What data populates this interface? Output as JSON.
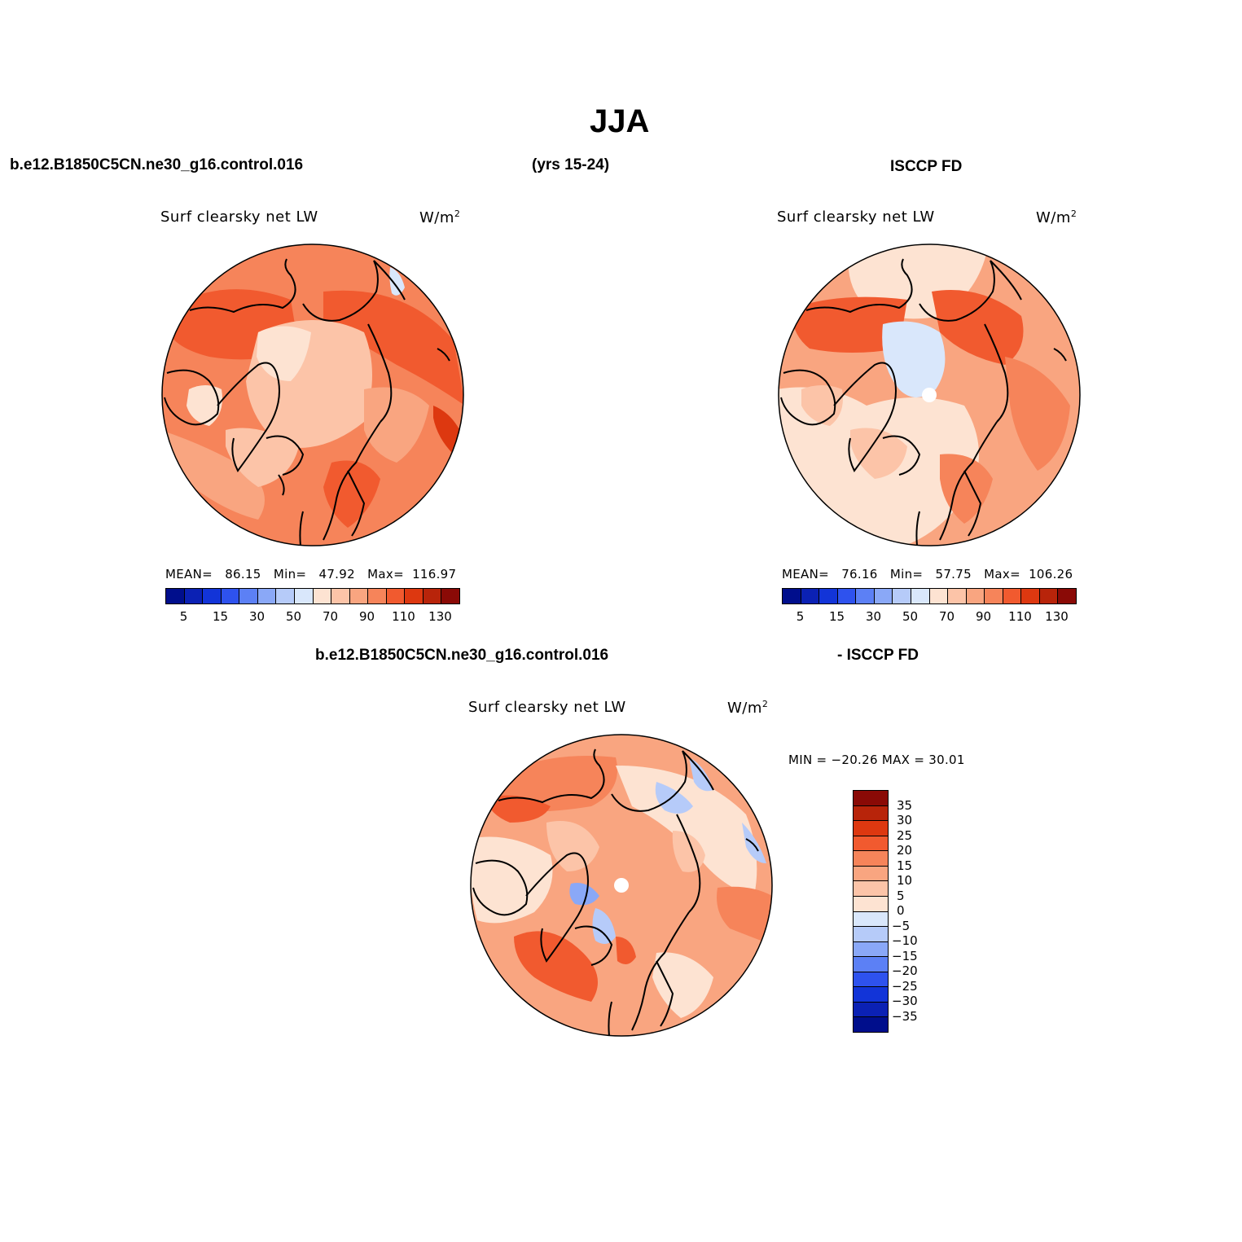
{
  "title": "JJA",
  "header": {
    "case_name": "b.e12.B1850C5CN.ne30_g16.control.016",
    "years": "(yrs 15-24)",
    "obs_name": "ISCCP FD",
    "diff_case": "b.e12.B1850C5CN.ne30_g16.control.016",
    "diff_obs": "- ISCCP FD"
  },
  "panels": {
    "model": {
      "variable": "Surf clearsky net LW",
      "units": "W/m",
      "units_exp": "2",
      "mean_label": "MEAN=",
      "mean": "86.15",
      "min_label": "Min=",
      "min": "47.92",
      "max_label": "Max=",
      "max": "116.97"
    },
    "obs": {
      "variable": "Surf clearsky net LW",
      "units": "W/m",
      "units_exp": "2",
      "mean_label": "MEAN=",
      "mean": "76.16",
      "min_label": "Min=",
      "min": "57.75",
      "max_label": "Max=",
      "max": "106.26"
    },
    "diff": {
      "variable": "Surf clearsky net LW",
      "units": "W/m",
      "units_exp": "2",
      "minmax": "MIN = −20.26 MAX =   30.01"
    }
  },
  "colorbar_main": {
    "colors": [
      "#000e8c",
      "#0b21b4",
      "#1234d8",
      "#2e52ee",
      "#5c80f5",
      "#8aa8f7",
      "#b6cbf9",
      "#d9e7fb",
      "#fde3d2",
      "#fcc4a8",
      "#f9a580",
      "#f6845a",
      "#f15a2f",
      "#dd3810",
      "#b8240a",
      "#8a0a06"
    ],
    "ticks": [
      "5",
      "15",
      "30",
      "50",
      "70",
      "90",
      "110",
      "130"
    ]
  },
  "colorbar_diff": {
    "colors": [
      "#8a0a06",
      "#b8240a",
      "#dd3810",
      "#f15a2f",
      "#f6845a",
      "#f9a580",
      "#fcc4a8",
      "#fde3d2",
      "#d9e7fb",
      "#b6cbf9",
      "#8aa8f7",
      "#5c80f5",
      "#2e52ee",
      "#1234d8",
      "#0b21b4",
      "#000e8c"
    ],
    "ticks": [
      "35",
      "30",
      "25",
      "20",
      "15",
      "10",
      "5",
      "0",
      "−5",
      "−10",
      "−15",
      "−20",
      "−25",
      "−30",
      "−35"
    ]
  },
  "map_colors": {
    "c50": "#d9e7fb",
    "c60": "#fde3d2",
    "c70": "#fcc4a8",
    "c80": "#f9a580",
    "c90": "#f6845a",
    "c100": "#f15a2f",
    "c110": "#dd3810",
    "d_neg": "#b6cbf9",
    "d_neg2": "#8aa8f7",
    "d0": "#fde3d2",
    "d5": "#fcc4a8",
    "d10": "#f9a580",
    "d15": "#f6845a",
    "d20": "#f15a2f"
  }
}
